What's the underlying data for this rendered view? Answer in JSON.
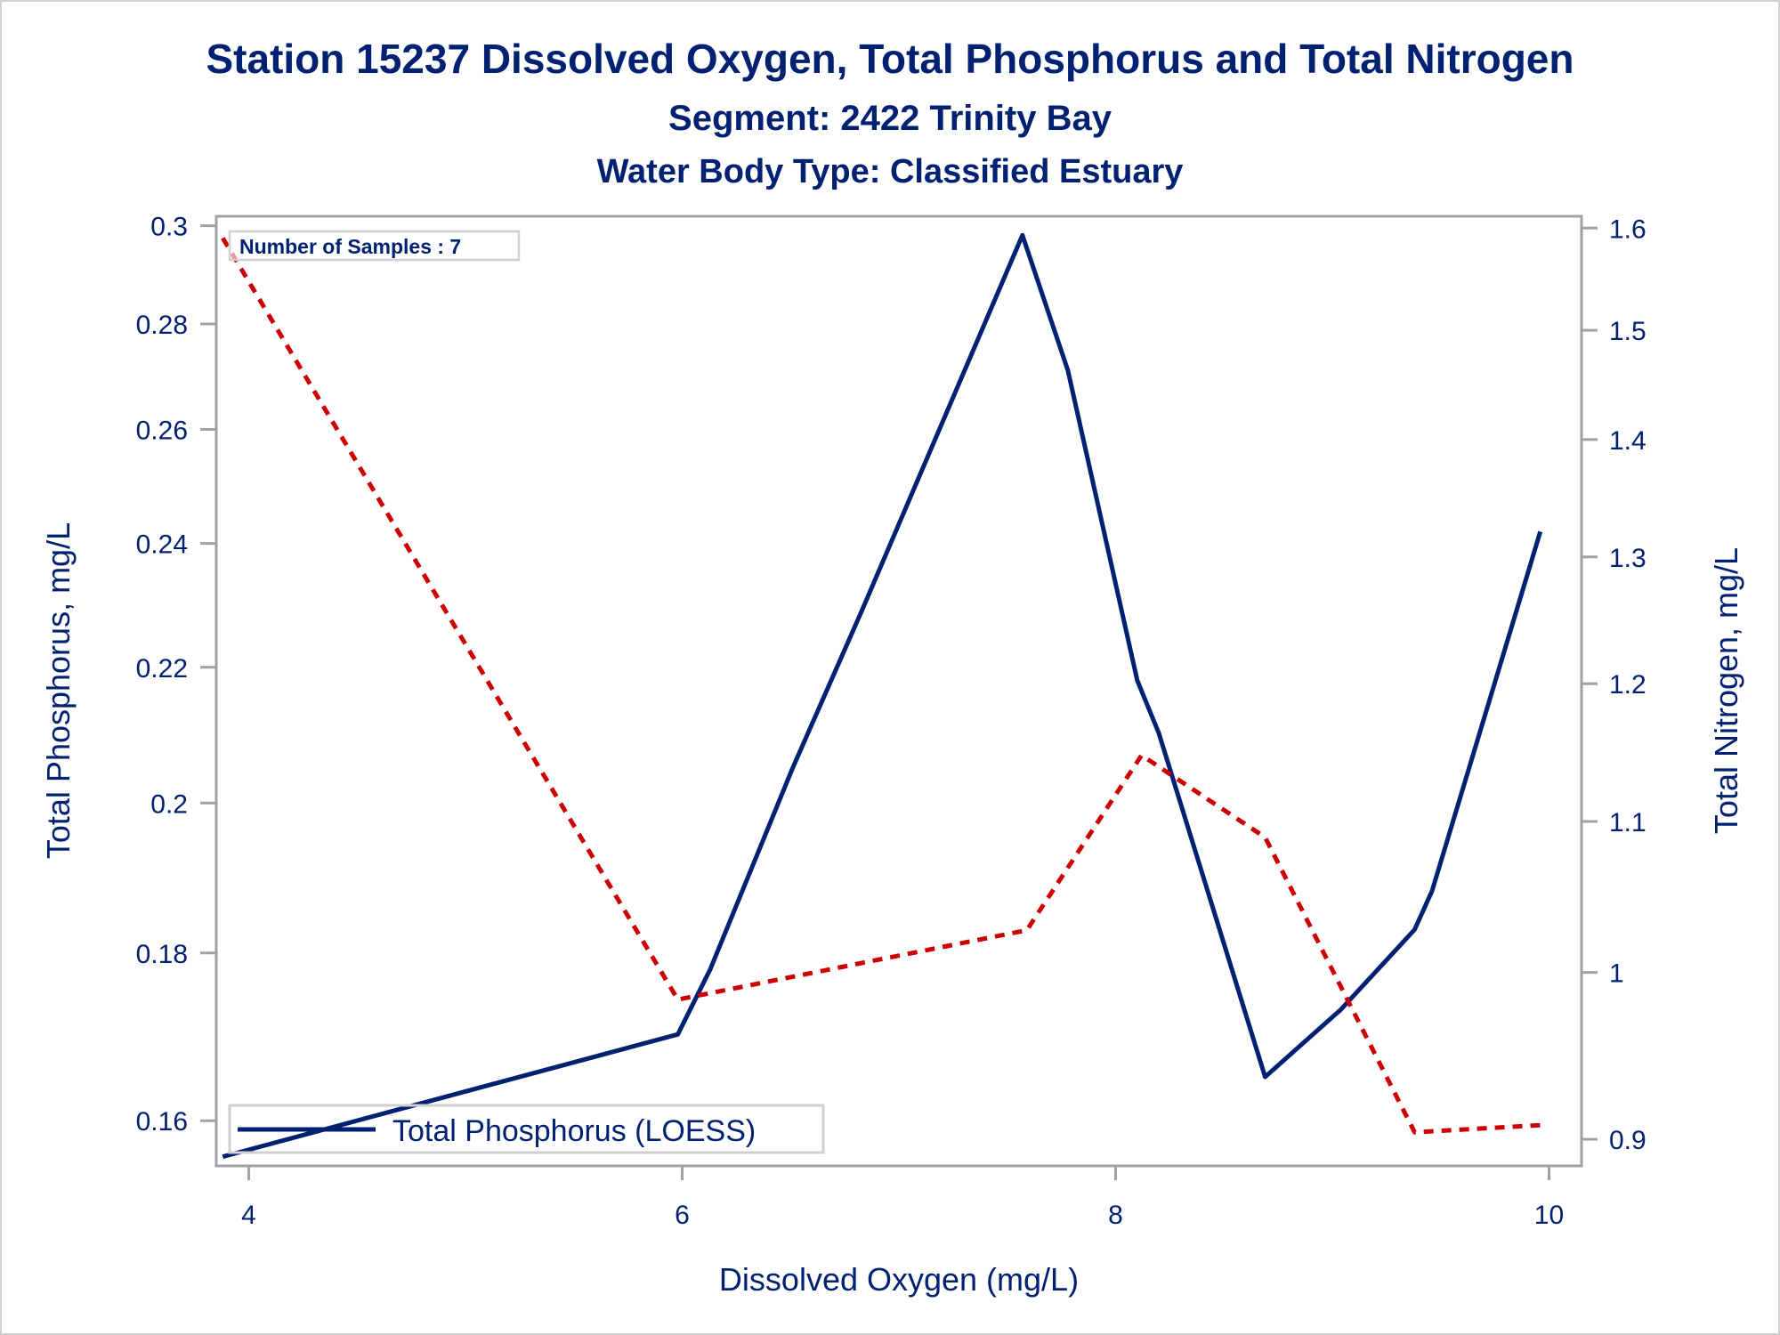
{
  "chart_data": {
    "type": "line",
    "title": "Station 15237  Dissolved Oxygen, Total Phosphorus and Total Nitrogen",
    "subtitle": "Segment: 2422  Trinity Bay",
    "subtitle2": "Water Body Type: Classified Estuary",
    "xlabel": "Dissolved Oxygen (mg/L)",
    "ylabel": "Total Phosphorus, mg/L",
    "y2label": "Total Nitrogen, mg/L",
    "xlim": [
      3.85,
      10.15
    ],
    "ylim": [
      0.155,
      0.302
    ],
    "y2lim": [
      0.885,
      1.612
    ],
    "yscale": "log",
    "y2scale": "log",
    "xticks": [
      "4",
      "6",
      "8",
      "10"
    ],
    "xtick_values": [
      4,
      6,
      8,
      10
    ],
    "yticks": [
      "0.16",
      "0.18",
      "0.2",
      "0.22",
      "0.24",
      "0.26",
      "0.28",
      "0.3"
    ],
    "ytick_values": [
      0.16,
      0.18,
      0.2,
      0.22,
      0.24,
      0.26,
      0.28,
      0.3
    ],
    "y2ticks": [
      "0.9",
      "1",
      "1.1",
      "1.2",
      "1.3",
      "1.4",
      "1.5",
      "1.6"
    ],
    "y2tick_values": [
      0.9,
      1.0,
      1.1,
      1.2,
      1.3,
      1.4,
      1.5,
      1.6
    ],
    "annotation": "Number of Samples : 7",
    "legend": {
      "position": "bottom-left",
      "entries": [
        "Total Phosphorus (LOESS)"
      ]
    },
    "grid": false,
    "series": [
      {
        "name": "Total Phosphorus (LOESS)",
        "axis": "left",
        "color": "#002072",
        "style": "solid",
        "x": [
          3.88,
          5.98,
          6.13,
          6.51,
          6.83,
          7.57,
          7.78,
          8.1,
          8.2,
          8.69,
          9.04,
          9.38,
          9.46,
          9.96
        ],
        "y": [
          0.156,
          0.17,
          0.178,
          0.205,
          0.229,
          0.298,
          0.271,
          0.218,
          0.21,
          0.165,
          0.173,
          0.183,
          0.188,
          0.242
        ]
      },
      {
        "name": "Total Nitrogen",
        "axis": "right",
        "color": "#cc0000",
        "style": "dashed",
        "x": [
          3.88,
          5.98,
          7.59,
          8.12,
          8.69,
          9.38,
          9.96
        ],
        "y": [
          1.59,
          0.983,
          1.027,
          1.147,
          1.089,
          0.904,
          0.908
        ]
      }
    ]
  }
}
